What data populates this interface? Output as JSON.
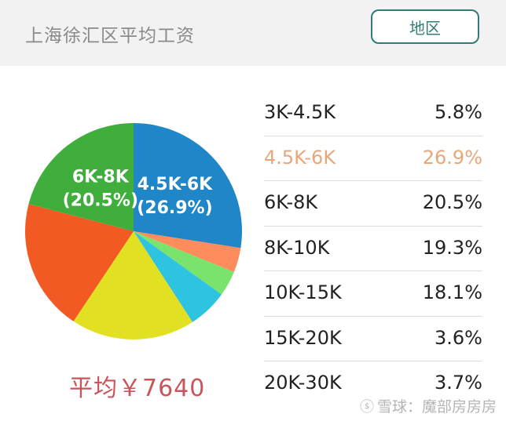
{
  "header": {
    "title": "上海徐汇区平均工资",
    "region_button": "地区"
  },
  "average": "平均￥7640",
  "watermark": "雪球：魔部房房房",
  "chart_data": {
    "type": "pie",
    "title": "",
    "categories": [
      "3K-4.5K",
      "4.5K-6K",
      "6K-8K",
      "8K-10K",
      "10K-15K",
      "15K-20K",
      "20K-30K"
    ],
    "values": [
      5.8,
      26.9,
      20.5,
      19.3,
      18.1,
      3.6,
      3.7
    ],
    "value_labels": [
      "5.8%",
      "26.9%",
      "20.5%",
      "19.3%",
      "18.1%",
      "3.6%",
      "3.7%"
    ],
    "highlighted": "4.5K-6K",
    "slice_annotations": [
      {
        "category": "4.5K-6K",
        "lines": [
          "4.5K-6K",
          "(26.9%)"
        ]
      },
      {
        "category": "6K-8K",
        "lines": [
          "6K-8K",
          "(20.5%)"
        ]
      }
    ],
    "colors": {
      "3K-4.5K": "#2ec3e0",
      "4.5K-6K": "#1f86c8",
      "6K-8K": "#3fae3c",
      "8K-10K": "#f25a24",
      "10K-15K": "#e2e022",
      "15K-20K": "#ff8c5c",
      "20K-30K": "#79e36d"
    },
    "highlight_color": "#e8a77a"
  }
}
